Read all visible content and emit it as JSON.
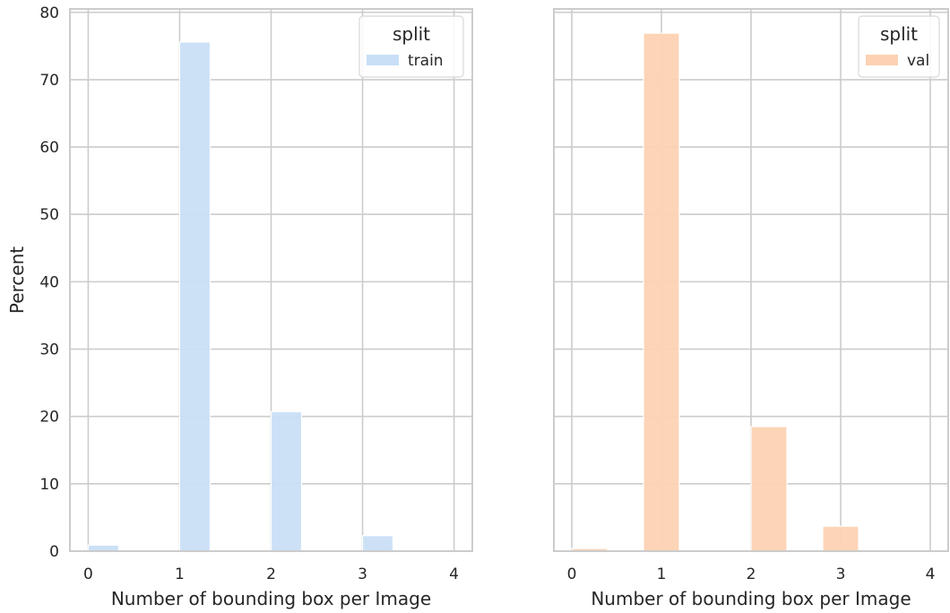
{
  "chart_data": [
    {
      "type": "bar",
      "categories": [
        0,
        1,
        2,
        3,
        4
      ],
      "x": [
        0.1667,
        1.1667,
        2.1667,
        3.1667
      ],
      "bin_width": 0.3333,
      "series": [
        {
          "name": "train",
          "values": [
            0.9,
            75.6,
            20.7,
            2.3
          ]
        }
      ],
      "xlabel": "Number of bounding box per Image",
      "ylabel": "Percent",
      "xlim": [
        -0.2,
        4.2
      ],
      "ylim": [
        0,
        80.5
      ],
      "yticks": [
        0,
        10,
        20,
        30,
        40,
        50,
        60,
        70,
        80
      ],
      "xticks": [
        0,
        1,
        2,
        3,
        4
      ],
      "grid": true,
      "legend": {
        "title": "split",
        "position": "top-right"
      },
      "colors": {
        "bar": "#c9dff6",
        "bar_edge": "#ffffff"
      }
    },
    {
      "type": "bar",
      "categories": [
        0,
        1,
        2,
        3,
        4
      ],
      "x": [
        0.2,
        1.0,
        2.2,
        3.0
      ],
      "bin_width": 0.4,
      "series": [
        {
          "name": "val",
          "values": [
            0.4,
            76.9,
            18.5,
            3.7
          ]
        }
      ],
      "xlabel": "Number of bounding box per Image",
      "ylabel": "",
      "xlim": [
        -0.2,
        4.2
      ],
      "ylim": [
        0,
        80.5
      ],
      "yticks": [
        0,
        10,
        20,
        30,
        40,
        50,
        60,
        70,
        80
      ],
      "xticks": [
        0,
        1,
        2,
        3,
        4
      ],
      "grid": true,
      "legend": {
        "title": "split",
        "position": "top-right"
      },
      "colors": {
        "bar": "#fdd2b3",
        "bar_edge": "#ffffff"
      }
    }
  ]
}
